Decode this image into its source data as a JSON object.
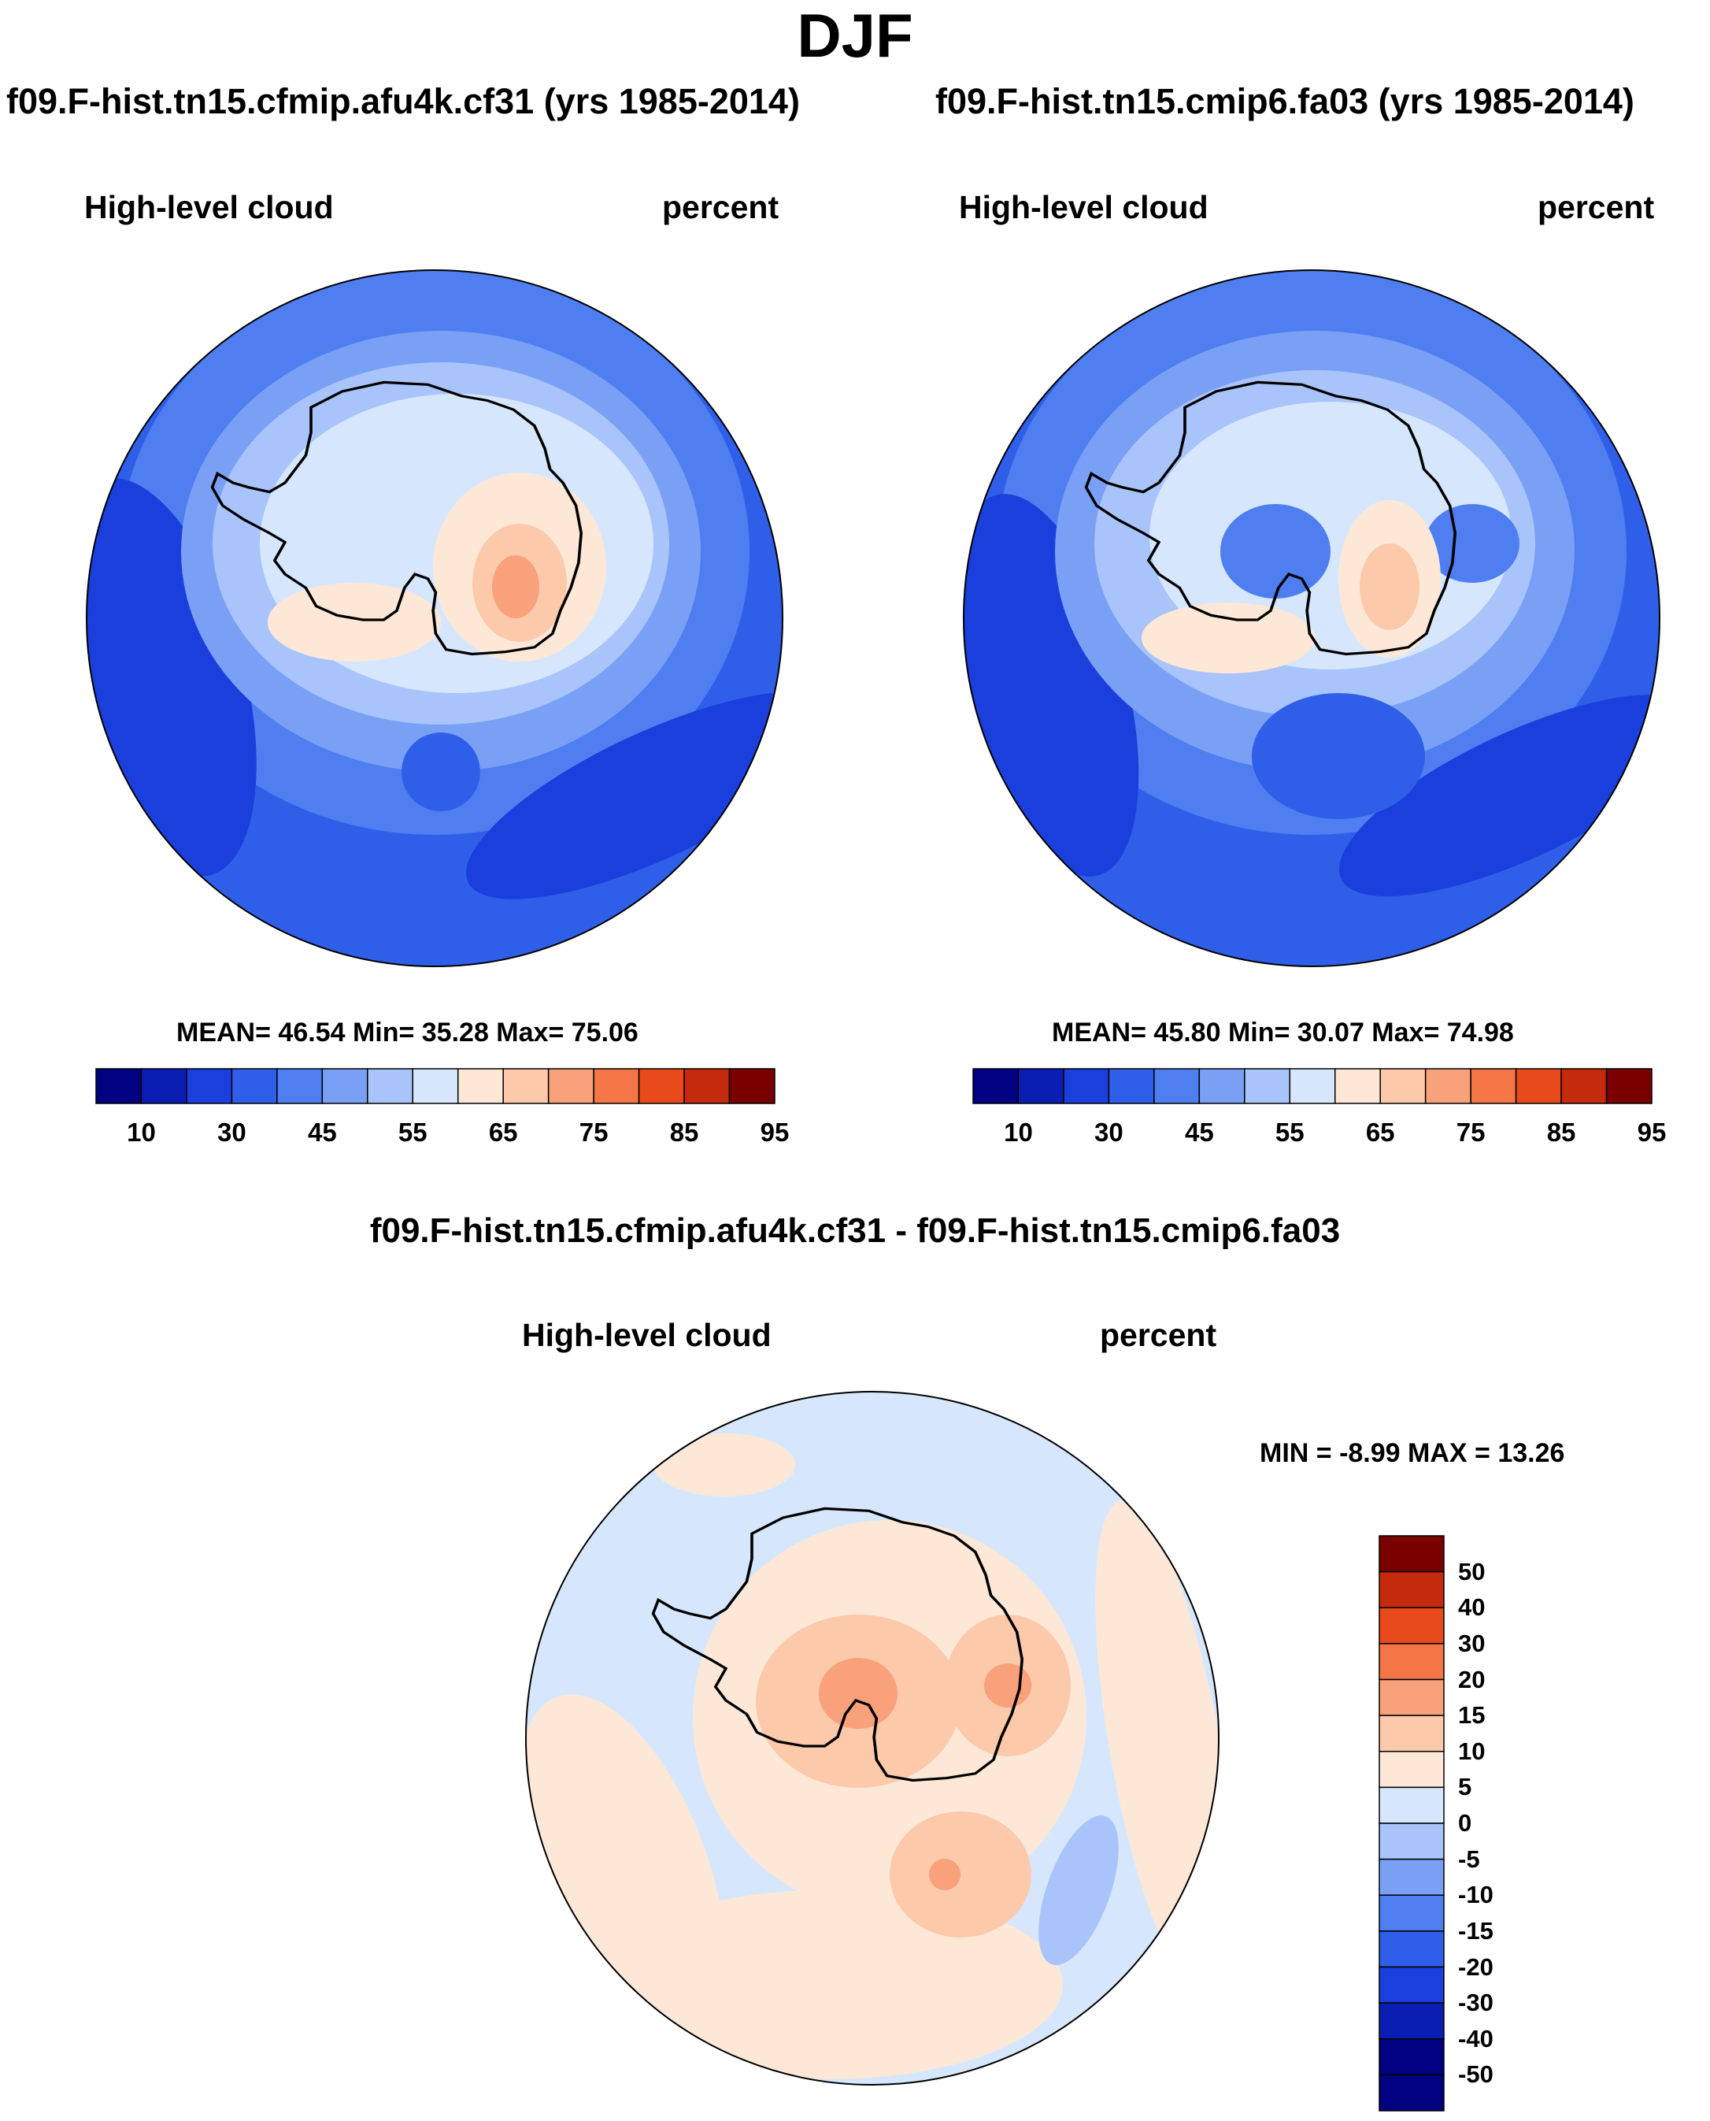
{
  "title": "DJF",
  "panels": [
    {
      "case": "f09.F-hist.tn15.cfmip.afu4k.cf31 (yrs 1985-2014)",
      "variable": "High-level cloud",
      "units": "percent",
      "stats": "MEAN=  46.54  Min=  35.28  Max=  75.06"
    },
    {
      "case": "f09.F-hist.tn15.cmip6.fa03 (yrs 1985-2014)",
      "variable": "High-level cloud",
      "units": "percent",
      "stats": "MEAN=  45.80  Min=  30.07  Max=  74.98"
    },
    {
      "case": "f09.F-hist.tn15.cfmip.afu4k.cf31 - f09.F-hist.tn15.cmip6.fa03",
      "variable": "High-level cloud",
      "units": "percent",
      "stats": "MIN =  -8.99 MAX =  13.26"
    }
  ],
  "colorbar_top": {
    "colors": [
      "#000080",
      "#0a1eb4",
      "#1a3fdc",
      "#2f5fe8",
      "#4f7ef0",
      "#7aa0f6",
      "#a9c4fa",
      "#d6e7fd",
      "#fde8d8",
      "#fcc9ab",
      "#f8a17a",
      "#f47545",
      "#e84a1c",
      "#c42a0c",
      "#7a0000"
    ],
    "tick_labels": [
      "10",
      "30",
      "45",
      "55",
      "65",
      "75",
      "85",
      "95"
    ]
  },
  "colorbar_diff": {
    "colors": [
      "#000080",
      "#0a1eb4",
      "#1a3fdc",
      "#2f5fe8",
      "#4f7ef0",
      "#7aa0f6",
      "#a9c4fa",
      "#d6e7fd",
      "#fde8d8",
      "#fcc9ab",
      "#f8a17a",
      "#f47545",
      "#e84a1c",
      "#c42a0c",
      "#7a0000"
    ],
    "tick_labels": [
      "50",
      "40",
      "30",
      "20",
      "15",
      "10",
      "5",
      "0",
      "-5",
      "-10",
      "-15",
      "-20",
      "-30",
      "-40",
      "-50"
    ]
  },
  "icons": [
    "antarctica-coastline"
  ]
}
